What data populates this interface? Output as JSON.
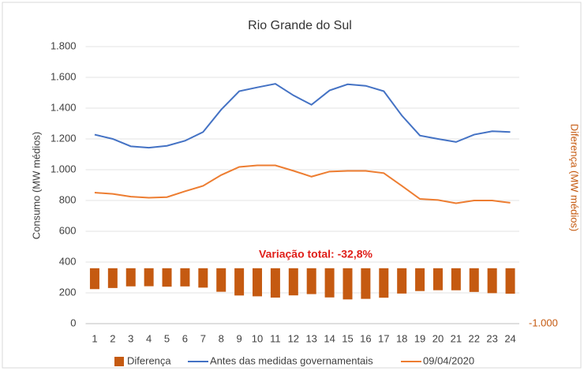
{
  "chart_data": {
    "type": "bar-line-combo",
    "title": "Rio Grande do Sul",
    "y_label": "Consumo (MW médios)",
    "y2_label": "Diferença (MW médios)",
    "annotation": "Variação total: -32,8%",
    "categories": [
      "1",
      "2",
      "3",
      "4",
      "5",
      "6",
      "7",
      "8",
      "9",
      "10",
      "11",
      "12",
      "13",
      "14",
      "15",
      "16",
      "17",
      "18",
      "19",
      "20",
      "21",
      "22",
      "23",
      "24"
    ],
    "ylim": [
      0,
      1800
    ],
    "yticks": [
      0,
      200,
      400,
      600,
      800,
      {
        "value": 1000,
        "label": "1.000"
      },
      {
        "value": 1200,
        "label": "1.200"
      },
      {
        "value": 1400,
        "label": "1.400"
      },
      {
        "value": 1600,
        "label": "1.600"
      },
      {
        "value": 1800,
        "label": "1.800"
      }
    ],
    "y2lim": [
      -1000,
      4000
    ],
    "y2ticks": [
      {
        "value": -1000,
        "label": "-1.000"
      }
    ],
    "grid": true,
    "legend": "bottom",
    "series": [
      {
        "name": "Diferença",
        "type": "bar",
        "axis": "y2",
        "color": "#c55a11",
        "values": [
          -377,
          -357,
          -327,
          -325,
          -333,
          -328,
          -350,
          -425,
          -492,
          -507,
          -530,
          -490,
          -467,
          -527,
          -563,
          -553,
          -532,
          -457,
          -412,
          -397,
          -398,
          -428,
          -450,
          -460
        ]
      },
      {
        "name": "Antes das medidas governamentais",
        "type": "line",
        "color": "#4472c4",
        "values": [
          1228,
          1200,
          1152,
          1143,
          1155,
          1188,
          1245,
          1390,
          1510,
          1535,
          1558,
          1483,
          1422,
          1515,
          1555,
          1545,
          1510,
          1352,
          1222,
          1200,
          1180,
          1228,
          1250,
          1245
        ]
      },
      {
        "name": "09/04/2020",
        "type": "line",
        "color": "#ed7d31",
        "values": [
          851,
          843,
          825,
          818,
          822,
          860,
          895,
          965,
          1018,
          1028,
          1028,
          993,
          955,
          988,
          992,
          992,
          978,
          895,
          810,
          803,
          782,
          800,
          800,
          785
        ]
      }
    ]
  }
}
